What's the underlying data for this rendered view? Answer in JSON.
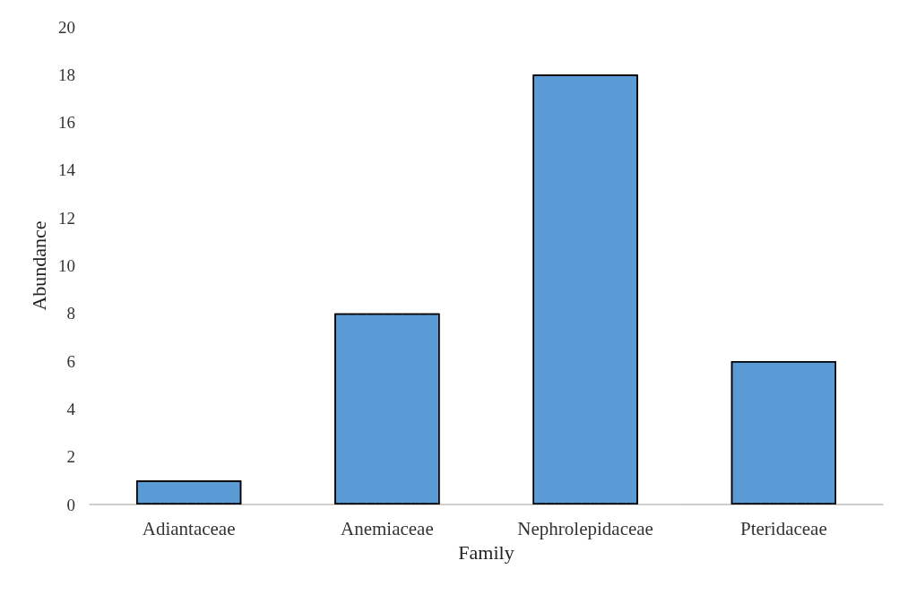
{
  "chart_data": {
    "type": "bar",
    "xlabel": "Family",
    "ylabel": "Abundance",
    "categories": [
      "Adiantaceae",
      "Anemiaceae",
      "Nephrolepidaceae",
      "Pteridaceae"
    ],
    "values": [
      1,
      8,
      18,
      6
    ],
    "color": "#5b9bd5",
    "ylim": [
      0,
      20
    ],
    "yticks": [
      0,
      2,
      4,
      6,
      8,
      10,
      12,
      14,
      16,
      18,
      20
    ],
    "grid": false
  }
}
